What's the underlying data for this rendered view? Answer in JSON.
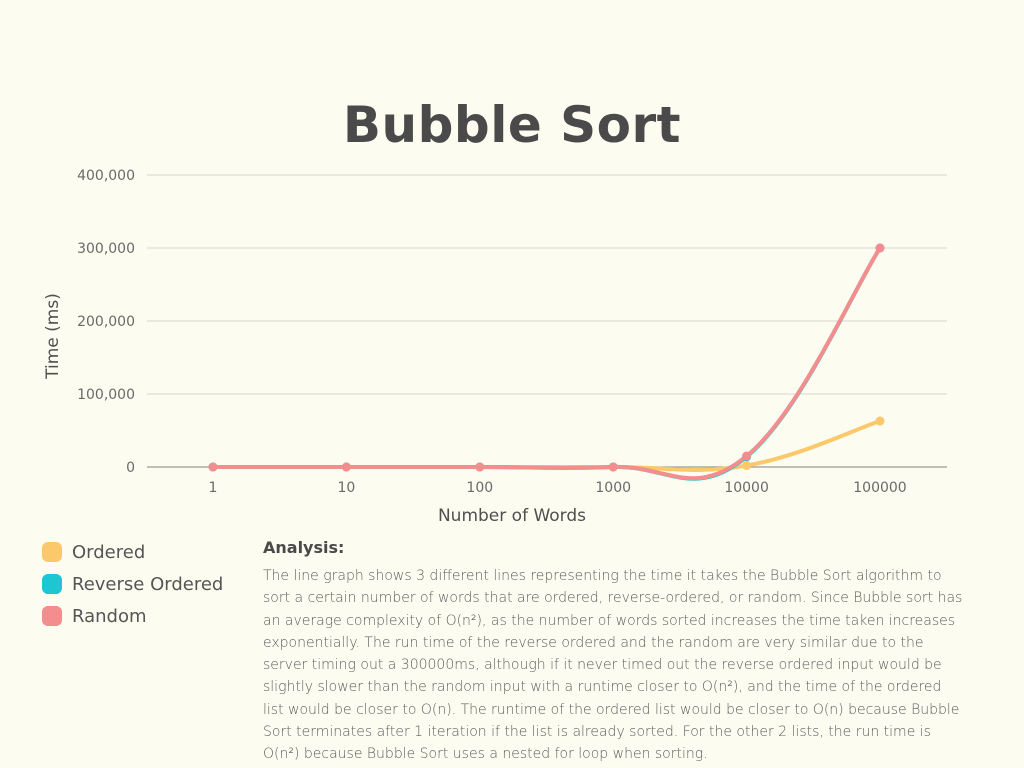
{
  "title": "Bubble Sort",
  "chart_data": {
    "type": "line",
    "title": "Bubble Sort",
    "xlabel": "Number of Words",
    "ylabel": "Time (ms)",
    "categories": [
      "1",
      "10",
      "100",
      "1000",
      "10000",
      "100000"
    ],
    "yticks": [
      "0",
      "100,000",
      "200,000",
      "300,000",
      "400,000"
    ],
    "ylim": [
      0,
      400000
    ],
    "grid": true,
    "legend_position": "bottom-left",
    "series": [
      {
        "name": "Ordered",
        "color": "#fbc96b",
        "values": [
          0,
          0,
          0,
          0,
          2000,
          63000
        ]
      },
      {
        "name": "Reverse Ordered",
        "color": "#1cc6d3",
        "values": [
          0,
          0,
          0,
          0,
          14000,
          300000
        ]
      },
      {
        "name": "Random",
        "color": "#f48d8d",
        "values": [
          0,
          0,
          0,
          0,
          15000,
          300000
        ]
      }
    ]
  },
  "analysis": {
    "heading": "Analysis:",
    "body": "The line graph shows 3 different lines representing the time it takes the Bubble Sort algorithm to sort a certain number of words that are ordered, reverse-ordered, or random. Since Bubble sort has an average complexity of O(n²), as the number of words sorted increases the time taken increases exponentially. The run time of the reverse ordered and the random are very similar due to the server timing out a 300000ms, although if it never timed out the reverse ordered input would be slightly slower than the random input with a runtime closer to  O(n²), and the time of the ordered list would be closer to O(n). The runtime of the ordered list would be closer to O(n) because Bubble Sort terminates after 1 iteration if the list is already sorted. For the other 2 lists, the run time is O(n²) because Bubble Sort uses a nested for loop when sorting."
  }
}
